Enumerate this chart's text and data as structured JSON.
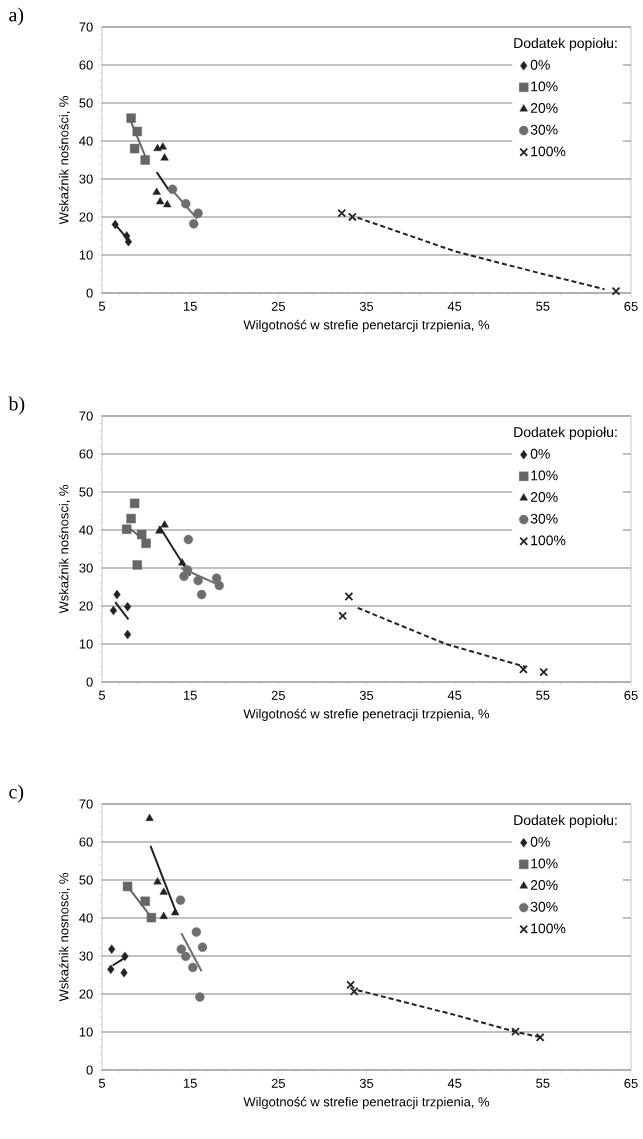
{
  "chart_data": [
    {
      "type": "scatter",
      "title": "a)",
      "xlabel": "Wilgotność w strefie penetarcji trzpienia, %",
      "ylabel": "Wskaźnik nośności, %",
      "legend_title": "Dodatek popiołu:",
      "xlim": [
        5,
        65
      ],
      "ylim": [
        0,
        70
      ],
      "xticks": [
        5,
        15,
        25,
        35,
        45,
        55,
        65
      ],
      "yticks": [
        0,
        10,
        20,
        30,
        40,
        50,
        60,
        70
      ],
      "grid": "y",
      "legend": "top right",
      "series": [
        {
          "name": "0%",
          "color": "#222222",
          "marker": "diamond",
          "x": [
            6.5,
            7.8,
            8.0
          ],
          "values": [
            18,
            15,
            13.5
          ]
        },
        {
          "name": "10%",
          "color": "#666666",
          "marker": "square",
          "x": [
            8.3,
            9.0,
            8.7,
            9.9
          ],
          "values": [
            46,
            42.5,
            38,
            35
          ]
        },
        {
          "name": "20%",
          "color": "#222222",
          "marker": "triangle",
          "x": [
            11.3,
            11.9,
            12.1,
            11.2,
            11.6,
            12.4
          ],
          "values": [
            38,
            38.4,
            35.5,
            26.5,
            24,
            23.2
          ]
        },
        {
          "name": "30%",
          "color": "#6e6e6e",
          "marker": "circle",
          "x": [
            13.0,
            14.5,
            15.4,
            15.9
          ],
          "values": [
            27.3,
            23.5,
            18.2,
            21
          ]
        },
        {
          "name": "100%",
          "color": "#222222",
          "marker": "cross",
          "x": [
            32.2,
            33.4,
            63.3
          ],
          "values": [
            21,
            20,
            0.5
          ]
        },
        {
          "type": "line",
          "color": "#222222",
          "marker": "none",
          "line_style": "solid",
          "x": [
            6.5,
            8.0
          ],
          "values": [
            18,
            14
          ]
        },
        {
          "type": "line",
          "color": "#666666",
          "marker": "none",
          "line_style": "solid",
          "x": [
            8.3,
            9.9
          ],
          "values": [
            45,
            36
          ]
        },
        {
          "type": "line",
          "color": "#222222",
          "marker": "none",
          "line_style": "solid",
          "x": [
            11.2,
            12.6
          ],
          "values": [
            31.8,
            27
          ]
        },
        {
          "type": "line",
          "color": "#6e6e6e",
          "marker": "none",
          "line_style": "solid",
          "x": [
            12.8,
            15.8
          ],
          "values": [
            27.5,
            19.5
          ]
        },
        {
          "type": "line",
          "color": "#222222",
          "marker": "none",
          "line_style": "dashed",
          "x": [
            34,
            45,
            55,
            62
          ],
          "values": [
            19.8,
            11,
            5,
            1
          ]
        }
      ]
    },
    {
      "type": "scatter",
      "title": "b)",
      "xlabel": "Wilgotność w strefie penetracji trzpienia, %",
      "ylabel": "Wskaźnik nośnosci, %",
      "legend_title": "Dodatek popiołu:",
      "xlim": [
        5,
        65
      ],
      "ylim": [
        0,
        70
      ],
      "xticks": [
        5,
        15,
        25,
        35,
        45,
        55,
        65
      ],
      "yticks": [
        0,
        10,
        20,
        30,
        40,
        50,
        60,
        70
      ],
      "grid": "y",
      "legend": "top right",
      "series": [
        {
          "name": "0%",
          "color": "#222222",
          "marker": "diamond",
          "x": [
            6.7,
            6.3,
            7.9,
            7.9
          ],
          "values": [
            23,
            18.8,
            19.8,
            12.5
          ]
        },
        {
          "name": "10%",
          "color": "#666666",
          "marker": "square",
          "x": [
            8.7,
            7.8,
            8.3,
            9.5,
            10.0,
            9.0
          ],
          "values": [
            47,
            40.2,
            43,
            38.8,
            36.5,
            30.8
          ]
        },
        {
          "name": "20%",
          "color": "#222222",
          "marker": "triangle",
          "x": [
            11.5,
            12.1,
            14.1
          ],
          "values": [
            39.7,
            41.3,
            31.3
          ]
        },
        {
          "name": "30%",
          "color": "#6e6e6e",
          "marker": "circle",
          "x": [
            14.8,
            14.3,
            14.7,
            15.9,
            16.3,
            18.0,
            18.3
          ],
          "values": [
            37.5,
            27.8,
            29.5,
            26.7,
            23,
            27.3,
            25.4
          ]
        },
        {
          "name": "100%",
          "color": "#222222",
          "marker": "cross",
          "x": [
            32.3,
            33.0,
            52.8,
            55.1
          ],
          "values": [
            17.4,
            22.5,
            3.3,
            2.6
          ]
        },
        {
          "type": "line",
          "color": "#222222",
          "marker": "none",
          "line_style": "solid",
          "x": [
            6.5,
            8.0
          ],
          "values": [
            21,
            16.5
          ]
        },
        {
          "type": "line",
          "color": "#666666",
          "marker": "none",
          "line_style": "solid",
          "x": [
            7.8,
            10.0
          ],
          "values": [
            41,
            37
          ]
        },
        {
          "type": "line",
          "color": "#222222",
          "marker": "none",
          "line_style": "solid",
          "x": [
            11.5,
            15.0
          ],
          "values": [
            41,
            28
          ]
        },
        {
          "type": "line",
          "color": "#6e6e6e",
          "marker": "none",
          "line_style": "solid",
          "x": [
            14.0,
            18.3
          ],
          "values": [
            30,
            25.5
          ]
        },
        {
          "type": "line",
          "color": "#222222",
          "marker": "none",
          "line_style": "dashed",
          "x": [
            34,
            44,
            53
          ],
          "values": [
            19.5,
            10,
            4
          ]
        }
      ]
    },
    {
      "type": "scatter",
      "title": "c)",
      "xlabel": "Wilgotność w strefie penetracji trzpienia, %",
      "ylabel": "Wskaźnik nosnosci, %",
      "legend_title": "Dodatek popiołu:",
      "xlim": [
        5,
        65
      ],
      "ylim": [
        0,
        70
      ],
      "xticks": [
        5,
        15,
        25,
        35,
        45,
        55,
        65
      ],
      "yticks": [
        0,
        10,
        20,
        30,
        40,
        50,
        60,
        70
      ],
      "grid": "y",
      "legend": "top right",
      "series": [
        {
          "name": "0%",
          "color": "#222222",
          "marker": "diamond",
          "x": [
            6.1,
            6.0,
            7.6,
            7.5
          ],
          "values": [
            31.8,
            26.5,
            29.9,
            25.6
          ]
        },
        {
          "name": "10%",
          "color": "#666666",
          "marker": "square",
          "x": [
            7.9,
            9.9,
            10.6
          ],
          "values": [
            48.3,
            44.4,
            40.1
          ]
        },
        {
          "name": "20%",
          "color": "#222222",
          "marker": "triangle",
          "x": [
            10.4,
            11.3,
            12.0,
            12.0,
            13.3
          ],
          "values": [
            66.2,
            49.5,
            46.8,
            40.4,
            41.4
          ]
        },
        {
          "name": "30%",
          "color": "#6e6e6e",
          "marker": "circle",
          "x": [
            13.9,
            15.7,
            16.4,
            14.0,
            14.5,
            15.3,
            16.1
          ],
          "values": [
            44.7,
            36.3,
            32.3,
            31.8,
            29.9,
            27,
            19.2
          ]
        },
        {
          "name": "100%",
          "color": "#222222",
          "marker": "cross",
          "x": [
            33.2,
            33.6,
            51.9,
            54.7
          ],
          "values": [
            22.4,
            20.7,
            10.1,
            8.6
          ]
        },
        {
          "type": "line",
          "color": "#222222",
          "marker": "none",
          "line_style": "solid",
          "x": [
            6.2,
            7.6
          ],
          "values": [
            27.5,
            29.5
          ]
        },
        {
          "type": "line",
          "color": "#666666",
          "marker": "none",
          "line_style": "solid",
          "x": [
            8.0,
            10.5
          ],
          "values": [
            48,
            40.5
          ]
        },
        {
          "type": "line",
          "color": "#222222",
          "marker": "none",
          "line_style": "solid",
          "x": [
            10.5,
            13.5
          ],
          "values": [
            59,
            41
          ]
        },
        {
          "type": "line",
          "color": "#6e6e6e",
          "marker": "none",
          "line_style": "solid",
          "x": [
            14.0,
            16.3
          ],
          "values": [
            36,
            26
          ]
        },
        {
          "type": "line",
          "color": "#222222",
          "marker": "none",
          "line_style": "dashed",
          "x": [
            34,
            45,
            52,
            55
          ],
          "values": [
            21,
            14.5,
            10,
            8.5
          ]
        }
      ]
    }
  ]
}
